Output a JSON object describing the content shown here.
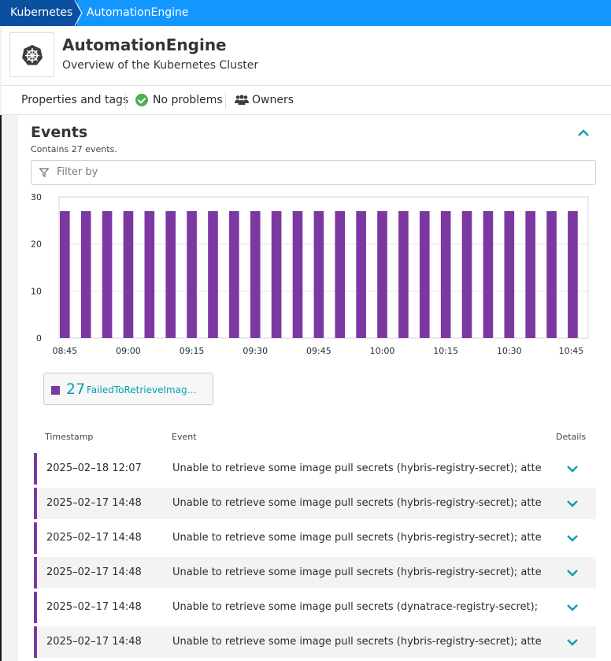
{
  "breadcrumb": {
    "root": "Kubernetes",
    "current": "AutomationEngine"
  },
  "header": {
    "title": "AutomationEngine",
    "subtitle": "Overview of the Kubernetes Cluster",
    "logo_icon": "kubernetes-helm-icon"
  },
  "tagbar": {
    "properties": "Properties and tags",
    "status": "No problems",
    "owners": "Owners"
  },
  "events": {
    "title": "Events",
    "count_text": "Contains 27 events.",
    "filter_placeholder": "Filter by",
    "legend": {
      "count": "27",
      "label": "FailedToRetrieveImag…",
      "color": "#7c38a1"
    }
  },
  "chart_data": {
    "type": "bar",
    "categories": [
      "08:45",
      "08:50",
      "08:55",
      "09:00",
      "09:05",
      "09:10",
      "09:15",
      "09:20",
      "09:25",
      "09:30",
      "09:35",
      "09:40",
      "09:45",
      "09:50",
      "09:55",
      "10:00",
      "10:05",
      "10:10",
      "10:15",
      "10:20",
      "10:25",
      "10:30",
      "10:35",
      "10:40",
      "10:45"
    ],
    "x_tick_labels": [
      "08:45",
      "09:00",
      "09:15",
      "09:30",
      "09:45",
      "10:00",
      "10:15",
      "10:30",
      "10:45"
    ],
    "values": [
      27,
      27,
      27,
      27,
      27,
      27,
      27,
      27,
      27,
      27,
      27,
      27,
      27,
      27,
      27,
      27,
      27,
      27,
      27,
      27,
      27,
      27,
      27,
      27,
      27
    ],
    "ylim": [
      0,
      30
    ],
    "yticks": [
      0,
      10,
      20,
      30
    ],
    "grid": true,
    "bar_color": "#7c38a1"
  },
  "table": {
    "headers": {
      "timestamp": "Timestamp",
      "event": "Event",
      "details": "Details"
    },
    "rows": [
      {
        "ts": "2025–02–18 12:07",
        "ev": "Unable to retrieve some image pull secrets (hybris-registry-secret); attempting to pull the image"
      },
      {
        "ts": "2025–02–17 14:48",
        "ev": "Unable to retrieve some image pull secrets (hybris-registry-secret); attempting to pull the image"
      },
      {
        "ts": "2025–02–17 14:48",
        "ev": "Unable to retrieve some image pull secrets (hybris-registry-secret); attempting to pull the image"
      },
      {
        "ts": "2025–02–17 14:48",
        "ev": "Unable to retrieve some image pull secrets (hybris-registry-secret); attempting to pull the image"
      },
      {
        "ts": "2025–02–17 14:48",
        "ev": "Unable to retrieve some image pull secrets (dynatrace-registry-secret); attempting to pull the image"
      },
      {
        "ts": "2025–02–17 14:48",
        "ev": "Unable to retrieve some image pull secrets (hybris-registry-secret); attempting to pull the image"
      }
    ]
  }
}
